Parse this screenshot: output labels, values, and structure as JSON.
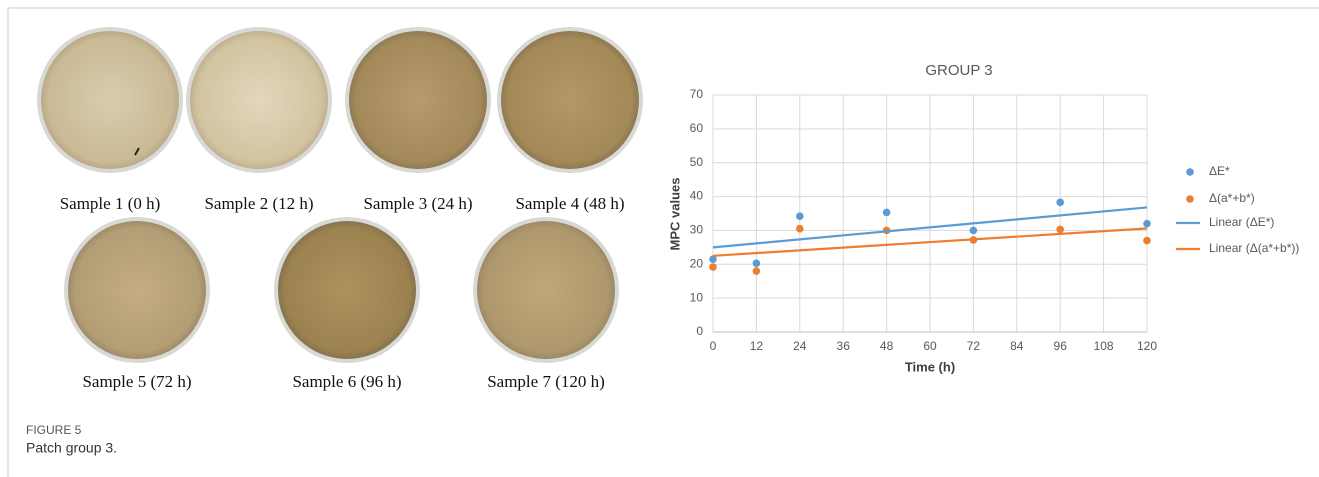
{
  "figure": {
    "label": "FIGURE 5",
    "caption": "Patch group 3.",
    "samples": [
      "Sample 1 (0 h)",
      "Sample 2 (12 h)",
      "Sample 3 (24 h)",
      "Sample 4 (48 h)",
      "Sample 5 (72 h)",
      "Sample 6 (96 h)",
      "Sample 7 (120 h)"
    ]
  },
  "chart_data": {
    "type": "scatter",
    "title": "GROUP 3",
    "x_label": "Time (h)",
    "y_label": "MPC values",
    "xlim": [
      0,
      120
    ],
    "ylim": [
      0,
      70
    ],
    "xticks": [
      0,
      12,
      24,
      36,
      48,
      60,
      72,
      84,
      96,
      108,
      120
    ],
    "yticks": [
      0,
      10,
      20,
      30,
      40,
      50,
      60,
      70
    ],
    "grid": true,
    "legend": "right",
    "series": [
      {
        "name": "ΔE*",
        "type": "scatter",
        "color": "#5b9bd5",
        "x": [
          0,
          12,
          24,
          48,
          72,
          96,
          120
        ],
        "values": [
          21.5,
          20.3,
          34.2,
          35.3,
          30,
          38.3,
          32
        ]
      },
      {
        "name": "Δ(a*+b*)",
        "type": "scatter",
        "color": "#ed7d31",
        "x": [
          0,
          12,
          24,
          48,
          72,
          96,
          120
        ],
        "values": [
          19.2,
          18,
          30.5,
          30,
          27.2,
          30.3,
          27
        ]
      },
      {
        "name": "Linear (ΔE*)",
        "type": "line",
        "color": "#5b9bd5",
        "x": [
          0,
          120
        ],
        "values": [
          25,
          36.8
        ]
      },
      {
        "name": "Linear (Δ(a*+b*))",
        "type": "line",
        "color": "#ed7d31",
        "x": [
          0,
          120
        ],
        "values": [
          22.5,
          30.6
        ]
      }
    ]
  }
}
